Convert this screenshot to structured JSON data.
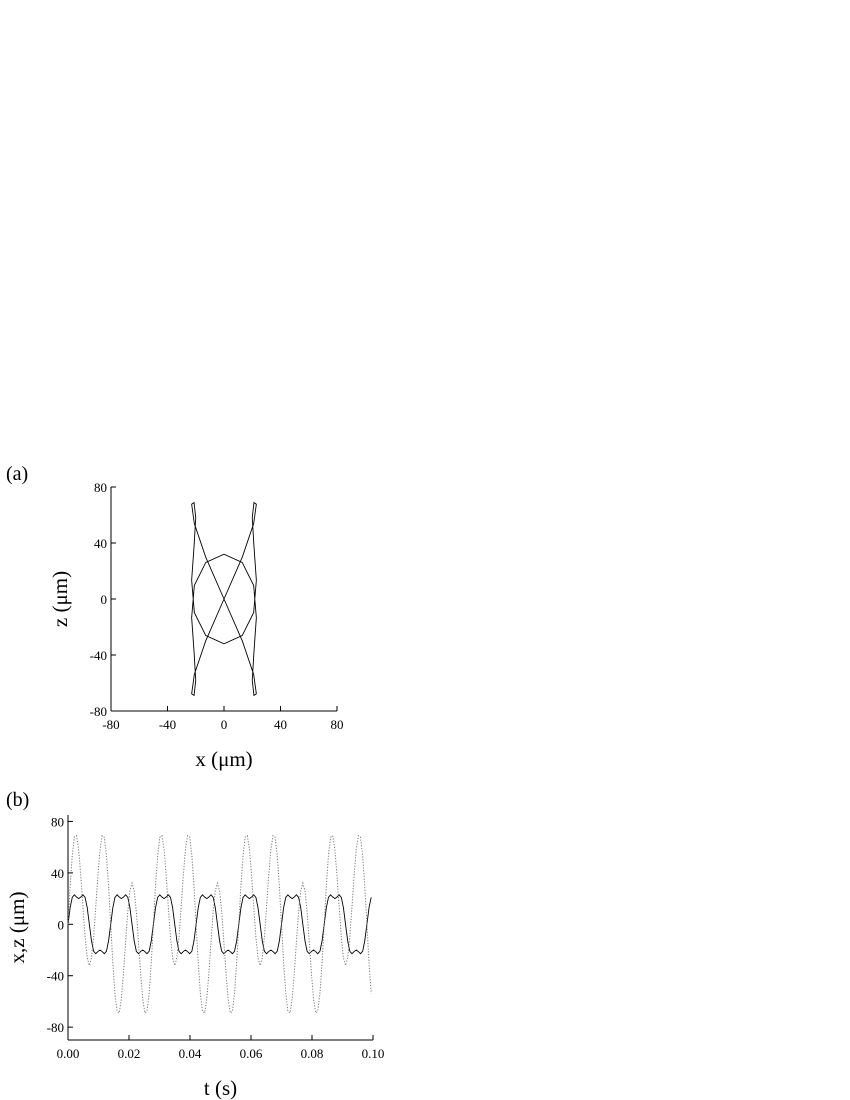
{
  "chart_data": [
    {
      "type": "line",
      "panel_label": "(a)",
      "x_label": "x (μm)",
      "y_label": "z (μm)",
      "xlim": [
        -80,
        80
      ],
      "ylim": [
        -80,
        80
      ],
      "xticks": [
        -80,
        -40,
        0,
        40,
        80
      ],
      "yticks": [
        -80,
        -40,
        0,
        40,
        80
      ],
      "color": "#000000",
      "x": [
        0,
        12.9,
        21.0,
        22.9,
        21.2,
        20.0,
        21.2,
        22.9,
        21.0,
        12.9,
        0,
        -12.9,
        -21.0,
        -22.9,
        -21.2,
        -20.0,
        -21.2,
        -22.9,
        -21.0,
        -12.9,
        0,
        12.9,
        21.0,
        22.9,
        21.2,
        20.0,
        21.2,
        22.9,
        21.0,
        12.9,
        0,
        -12.9,
        -21.0,
        -22.9,
        -21.2,
        -20.0,
        -21.2,
        -22.9,
        -21.0,
        -12.9,
        0
      ],
      "values": [
        0,
        29.8,
        53.8,
        67.7,
        68.9,
        58.0,
        37.8,
        13.4,
        -9.7,
        -26.1,
        -32.0,
        -26.1,
        -9.7,
        13.4,
        37.8,
        58.0,
        68.9,
        67.7,
        53.8,
        29.8,
        0,
        -29.8,
        -53.8,
        -67.7,
        -68.9,
        -58.0,
        -37.8,
        -13.4,
        9.7,
        26.1,
        32.0,
        26.1,
        9.7,
        -13.4,
        -37.8,
        -58.0,
        -68.9,
        -67.7,
        -53.8,
        -29.8,
        0
      ]
    },
    {
      "type": "line",
      "panel_label": "(b)",
      "x_label": "t (s)",
      "y_label": "x,z (μm)",
      "xlim": [
        0,
        0.1
      ],
      "ylim": [
        -90,
        85
      ],
      "xticks": [
        {
          "value": 0,
          "label": "0.00"
        },
        {
          "value": 0.02,
          "label": "0.02"
        },
        {
          "value": 0.04,
          "label": "0.04"
        },
        {
          "value": 0.06,
          "label": "0.06"
        },
        {
          "value": 0.08,
          "label": "0.08"
        },
        {
          "value": 0.1,
          "label": "0.10"
        }
      ],
      "yticks": [
        -80,
        -40,
        0,
        40,
        80
      ],
      "x": [
        0,
        0.0007,
        0.0014,
        0.0021,
        0.0028,
        0.0035,
        0.0042,
        0.0049,
        0.0056,
        0.0063,
        0.007,
        0.0077,
        0.0084,
        0.0091,
        0.0098,
        0.0105,
        0.0112,
        0.0119,
        0.0126,
        0.0133,
        0.014,
        0.0147,
        0.0154,
        0.0161,
        0.0168,
        0.0175,
        0.0182,
        0.0189,
        0.0196,
        0.0203,
        0.021,
        0.0217,
        0.0224,
        0.0231,
        0.0238,
        0.0245,
        0.0252,
        0.0259,
        0.0266,
        0.0273,
        0.028,
        0.0287,
        0.0294,
        0.0301,
        0.0308,
        0.0315,
        0.0322,
        0.0329,
        0.0336,
        0.0343,
        0.035,
        0.0357,
        0.0364,
        0.0371,
        0.0378,
        0.0385,
        0.0392,
        0.0399,
        0.0406,
        0.0413,
        0.042,
        0.0427,
        0.0434,
        0.0441,
        0.0448,
        0.0455,
        0.0462,
        0.0469,
        0.0476,
        0.0483,
        0.049,
        0.0497,
        0.0504,
        0.0511,
        0.0518,
        0.0525,
        0.0532,
        0.0539,
        0.0546,
        0.0553,
        0.056,
        0.0567,
        0.0574,
        0.0581,
        0.0588,
        0.0595,
        0.0602,
        0.0609,
        0.0616,
        0.0623,
        0.063,
        0.0637,
        0.0644,
        0.0651,
        0.0658,
        0.0665,
        0.0672,
        0.0679,
        0.0686,
        0.0693,
        0.07,
        0.0707,
        0.0714,
        0.0721,
        0.0728,
        0.0735,
        0.0742,
        0.0749,
        0.0756,
        0.0763,
        0.077,
        0.0777,
        0.0784,
        0.0791,
        0.0798,
        0.0805,
        0.0812,
        0.0819,
        0.0826,
        0.0833,
        0.084,
        0.0847,
        0.0854,
        0.0861,
        0.0868,
        0.0875,
        0.0882,
        0.0889,
        0.0896,
        0.0903,
        0.091,
        0.0917,
        0.0924,
        0.0931,
        0.0938,
        0.0945,
        0.0952,
        0.0959,
        0.0966,
        0.0973,
        0.098,
        0.0987,
        0.0994
      ],
      "series": [
        {
          "color": "#000000",
          "dash": "solid",
          "values": [
            0,
            12.9,
            21.0,
            22.9,
            21.2,
            20.0,
            21.2,
            22.9,
            21.0,
            12.9,
            0,
            -12.9,
            -21.0,
            -22.9,
            -21.2,
            -20.0,
            -21.2,
            -22.9,
            -21.0,
            -12.9,
            0,
            12.9,
            21.0,
            22.9,
            21.2,
            20.0,
            21.2,
            22.9,
            21.0,
            12.9,
            0,
            -12.9,
            -21.0,
            -22.9,
            -21.2,
            -20.0,
            -21.2,
            -22.9,
            -21.0,
            -12.9,
            0,
            12.9,
            21.0,
            22.9,
            21.2,
            20.0,
            21.2,
            22.9,
            21.0,
            12.9,
            0,
            -12.9,
            -21.0,
            -22.9,
            -21.2,
            -20.0,
            -21.2,
            -22.9,
            -21.0,
            -12.9,
            0,
            12.9,
            21.0,
            22.9,
            21.2,
            20.0,
            21.2,
            22.9,
            21.0,
            12.9,
            0,
            -12.9,
            -21.0,
            -22.9,
            -21.2,
            -20.0,
            -21.2,
            -22.9,
            -21.0,
            -12.9,
            0,
            12.9,
            21.0,
            22.9,
            21.2,
            20.0,
            21.2,
            22.9,
            21.0,
            12.9,
            0,
            -12.9,
            -21.0,
            -22.9,
            -21.2,
            -20.0,
            -21.2,
            -22.9,
            -21.0,
            -12.9,
            0,
            12.9,
            21.0,
            22.9,
            21.2,
            20.0,
            21.2,
            22.9,
            21.0,
            12.9,
            0,
            -12.9,
            -21.0,
            -22.9,
            -21.2,
            -20.0,
            -21.2,
            -22.9,
            -21.0,
            -12.9,
            0,
            12.9,
            21.0,
            22.9,
            21.2,
            20.0,
            21.2,
            22.9,
            21.0,
            12.9,
            0,
            -12.9,
            -21.0,
            -22.9,
            -21.2,
            -20.0,
            -21.2,
            -22.9,
            -21.0,
            -12.9,
            0,
            12.9,
            21.0
          ]
        },
        {
          "color": "#777777",
          "dash": "dotted",
          "values": [
            0,
            29.8,
            53.8,
            67.7,
            68.9,
            58.0,
            37.8,
            13.4,
            -9.7,
            -26.1,
            -32.0,
            -26.1,
            -9.7,
            13.4,
            37.8,
            58.0,
            68.9,
            67.7,
            53.8,
            29.8,
            0,
            -29.8,
            -53.8,
            -67.7,
            -68.9,
            -58.0,
            -37.8,
            -13.4,
            9.7,
            26.1,
            32.0,
            26.1,
            9.7,
            -13.4,
            -37.8,
            -58.0,
            -68.9,
            -67.7,
            -53.8,
            -29.8,
            0,
            29.8,
            53.8,
            67.7,
            68.9,
            58.0,
            37.8,
            13.4,
            -9.7,
            -26.1,
            -32.0,
            -26.1,
            -9.7,
            13.4,
            37.8,
            58.0,
            68.9,
            67.7,
            53.8,
            29.8,
            0,
            -29.8,
            -53.8,
            -67.7,
            -68.9,
            -58.0,
            -37.8,
            -13.4,
            9.7,
            26.1,
            32.0,
            26.1,
            9.7,
            -13.4,
            -37.8,
            -58.0,
            -68.9,
            -67.7,
            -53.8,
            -29.8,
            0,
            29.8,
            53.8,
            67.7,
            68.9,
            58.0,
            37.8,
            13.4,
            -9.7,
            -26.1,
            -32.0,
            -26.1,
            -9.7,
            13.4,
            37.8,
            58.0,
            68.9,
            67.7,
            53.8,
            29.8,
            0,
            -29.8,
            -53.8,
            -67.7,
            -68.9,
            -58.0,
            -37.8,
            -13.4,
            9.7,
            26.1,
            32.0,
            26.1,
            9.7,
            -13.4,
            -37.8,
            -58.0,
            -68.9,
            -67.7,
            -53.8,
            -29.8,
            0,
            29.8,
            53.8,
            67.7,
            68.9,
            58.0,
            37.8,
            13.4,
            -9.7,
            -26.1,
            -32.0,
            -26.1,
            -9.7,
            13.4,
            37.8,
            58.0,
            68.9,
            67.7,
            53.8,
            29.8,
            0,
            -29.8,
            -53.8
          ]
        }
      ]
    }
  ]
}
